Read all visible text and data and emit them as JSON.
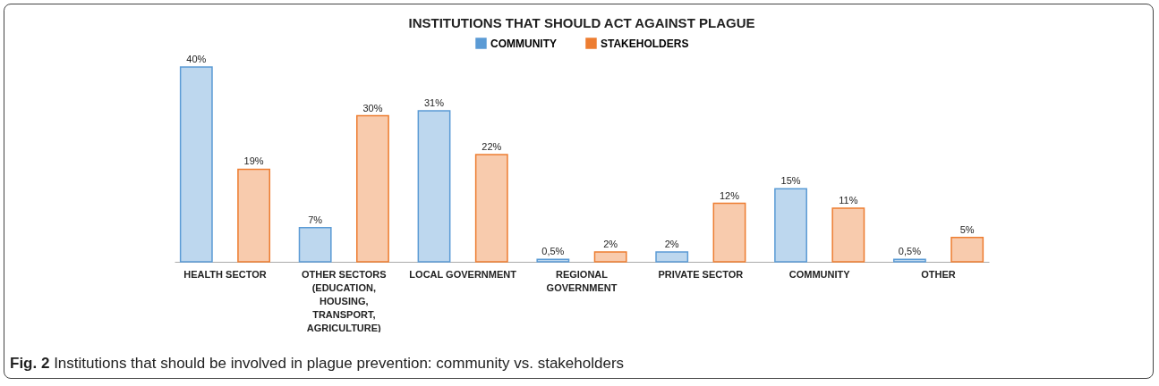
{
  "chart_data": {
    "type": "bar",
    "title": "INSTITUTIONS THAT SHOULD ACT AGAINST PLAGUE",
    "categories": [
      "HEALTH SECTOR",
      "OTHER SECTORS (EDUCATION, HOUSING, TRANSPORT, AGRICULTURE)",
      "LOCAL GOVERNMENT",
      "REGIONAL GOVERNMENT",
      "PRIVATE SECTOR",
      "COMMUNITY",
      "OTHER"
    ],
    "series": [
      {
        "name": "COMMUNITY",
        "color": "#5b9bd5",
        "values": [
          40,
          7,
          31,
          0.5,
          2,
          15,
          0.5
        ],
        "value_labels": [
          "40%",
          "7%",
          "31%",
          "0,5%",
          "2%",
          "15%",
          "0,5%"
        ]
      },
      {
        "name": "STAKEHOLDERS",
        "color": "#ed7d31",
        "values": [
          19,
          30,
          22,
          2,
          12,
          11,
          5
        ],
        "value_labels": [
          "19%",
          "30%",
          "22%",
          "2%",
          "12%",
          "11%",
          "5%"
        ]
      }
    ],
    "legend": "top",
    "tick_labels": "x",
    "annotations": [
      "Fig. 2 Institutions that should be involved in plague prevention: community vs. stakeholders"
    ]
  }
}
